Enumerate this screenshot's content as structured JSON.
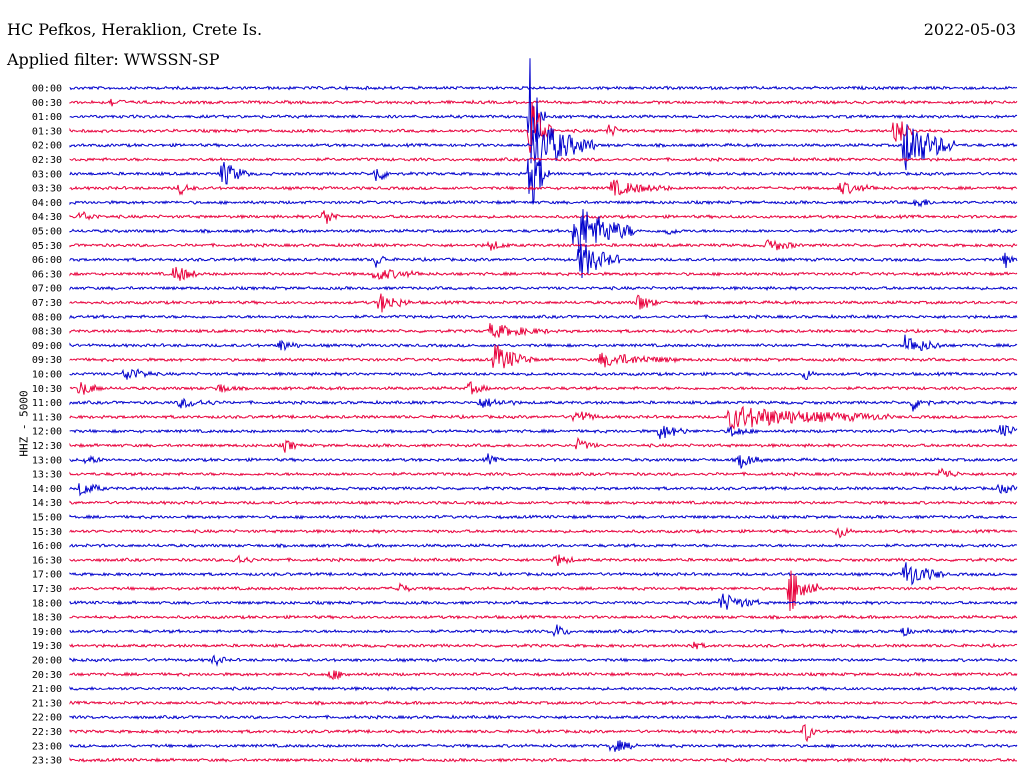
{
  "header": {
    "station": "HC Pefkos, Heraklion, Crete Is.",
    "filter": "Applied filter: WWSSN-SP",
    "date": "2022-05-03"
  },
  "chart_data": {
    "type": "line",
    "title": "HC Pefkos, Heraklion, Crete Is.",
    "subtitle": "Applied filter: WWSSN-SP",
    "date": "2022-05-03",
    "ylabel": "HHZ - 5000",
    "xlabel": "",
    "row_labels": [
      "00:00",
      "00:30",
      "01:00",
      "01:30",
      "02:00",
      "02:30",
      "03:00",
      "03:30",
      "04:00",
      "04:30",
      "05:00",
      "05:30",
      "06:00",
      "06:30",
      "07:00",
      "07:30",
      "08:00",
      "08:30",
      "09:00",
      "09:30",
      "10:00",
      "10:30",
      "11:00",
      "11:30",
      "12:00",
      "12:30",
      "13:00",
      "13:30",
      "14:00",
      "14:30",
      "15:00",
      "15:30",
      "16:00",
      "16:30",
      "17:00",
      "17:30",
      "18:00",
      "18:30",
      "19:00",
      "19:30",
      "20:00",
      "20:30",
      "21:00",
      "21:30",
      "22:00",
      "22:30",
      "23:00",
      "23:30"
    ],
    "trace_colors": [
      "#0000cc",
      "#e8003c"
    ],
    "grid": false,
    "legend": "none"
  }
}
